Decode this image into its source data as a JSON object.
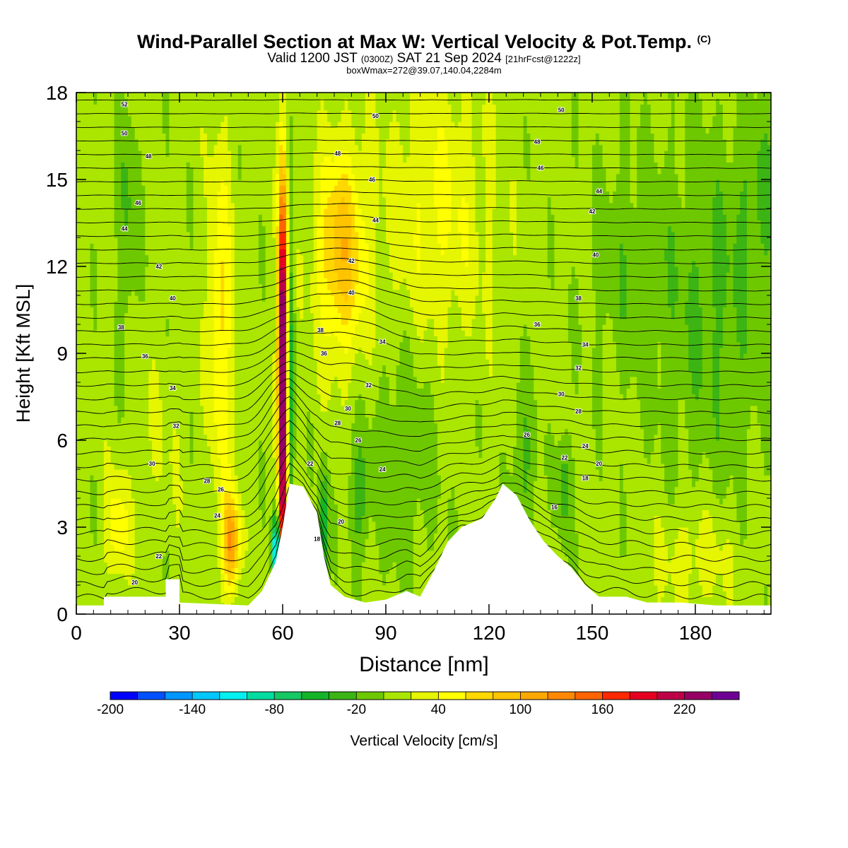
{
  "header": {
    "title": "Wind-Parallel Section at Max W: Vertical Velocity & Pot.Temp.",
    "copyright": "(C)",
    "valid_main": "Valid 1200 JST",
    "valid_utc": "(0300Z)",
    "valid_date": "SAT 21 Sep 2024",
    "forecast": "[21hrFcst@1222z]",
    "box_info": "boxWmax=272@39.07,140.04,2284m"
  },
  "colors": {
    "scale": [
      "#0000ff",
      "#0050ff",
      "#0096ff",
      "#00c8ff",
      "#00f0f0",
      "#00dca0",
      "#14c864",
      "#14b428",
      "#3cb414",
      "#6ec800",
      "#aae600",
      "#e6f500",
      "#ffff00",
      "#ffd800",
      "#ffc400",
      "#ffa800",
      "#ff8800",
      "#ff6400",
      "#ff2800",
      "#e60020",
      "#be0046",
      "#960064",
      "#6e0096"
    ]
  },
  "chart_data": {
    "type": "heatmap",
    "xlabel": "Distance [nm]",
    "ylabel": "Height [Kft MSL]",
    "xlim": [
      0,
      202
    ],
    "ylim": [
      0,
      18
    ],
    "xticks": [
      0,
      30,
      60,
      90,
      120,
      150,
      180
    ],
    "yticks": [
      0,
      3,
      6,
      9,
      12,
      15,
      18
    ],
    "colorbar": {
      "label": "Vertical Velocity [cm/s]",
      "levels": [
        -200,
        -180,
        -160,
        -140,
        -120,
        -100,
        -80,
        -60,
        -40,
        -20,
        0,
        20,
        40,
        60,
        80,
        100,
        120,
        140,
        160,
        180,
        200,
        220,
        240,
        260
      ],
      "tick_labels": [
        -200,
        -140,
        -80,
        -20,
        40,
        100,
        160,
        220
      ]
    },
    "terrain": [
      [
        0,
        0.3
      ],
      [
        8,
        0.3
      ],
      [
        8,
        0.6
      ],
      [
        26,
        0.6
      ],
      [
        26,
        1.2
      ],
      [
        30,
        1.2
      ],
      [
        30,
        0.4
      ],
      [
        50,
        0.3
      ],
      [
        54,
        0.8
      ],
      [
        58,
        1.8
      ],
      [
        60,
        3.0
      ],
      [
        62,
        4.5
      ],
      [
        66,
        4.4
      ],
      [
        70,
        3.5
      ],
      [
        72,
        2.0
      ],
      [
        74,
        1.0
      ],
      [
        78,
        0.6
      ],
      [
        84,
        0.4
      ],
      [
        90,
        0.5
      ],
      [
        96,
        0.8
      ],
      [
        100,
        0.6
      ],
      [
        104,
        1.5
      ],
      [
        108,
        2.5
      ],
      [
        112,
        3.0
      ],
      [
        118,
        3.3
      ],
      [
        122,
        4.0
      ],
      [
        124,
        4.5
      ],
      [
        128,
        4.1
      ],
      [
        132,
        3.2
      ],
      [
        136,
        2.5
      ],
      [
        140,
        2.0
      ],
      [
        144,
        1.6
      ],
      [
        148,
        1.0
      ],
      [
        152,
        0.6
      ],
      [
        160,
        0.6
      ],
      [
        166,
        0.4
      ],
      [
        176,
        0.4
      ],
      [
        186,
        0.3
      ],
      [
        202,
        0.3
      ]
    ],
    "w_features": [
      {
        "x": 60,
        "y": 9.5,
        "sx": 1.3,
        "sy": 5.5,
        "w": 272
      },
      {
        "x": 60,
        "y": 3.5,
        "sx": 1.0,
        "sy": 3.0,
        "w": 150
      },
      {
        "x": 58,
        "y": 2.2,
        "sx": 1.0,
        "sy": 1.2,
        "w": -160
      },
      {
        "x": 62.5,
        "y": 8.0,
        "sx": 0.9,
        "sy": 5.5,
        "w": -60
      },
      {
        "x": 77,
        "y": 12.5,
        "sx": 7,
        "sy": 3.5,
        "w": 85
      },
      {
        "x": 42,
        "y": 10.0,
        "sx": 3.5,
        "sy": 6.0,
        "w": 55
      },
      {
        "x": 45,
        "y": 2.5,
        "sx": 2.5,
        "sy": 1.6,
        "w": 110
      },
      {
        "x": 12,
        "y": 3.0,
        "sx": 3.5,
        "sy": 1.8,
        "w": 45
      },
      {
        "x": 105,
        "y": 14,
        "sx": 15,
        "sy": 4.5,
        "w": 35
      },
      {
        "x": 72,
        "y": 3.0,
        "sx": 1.3,
        "sy": 2.0,
        "w": -70
      },
      {
        "x": 82,
        "y": 4.0,
        "sx": 3.0,
        "sy": 2.0,
        "w": -35
      },
      {
        "x": 95,
        "y": 5.5,
        "sx": 10,
        "sy": 4.0,
        "w": -25
      },
      {
        "x": 130,
        "y": 5.0,
        "sx": 4.0,
        "sy": 3.0,
        "w": -30
      },
      {
        "x": 142,
        "y": 4.5,
        "sx": 2.0,
        "sy": 2.0,
        "w": -40
      },
      {
        "x": 15,
        "y": 14.0,
        "sx": 3.0,
        "sy": 4.5,
        "w": -30
      },
      {
        "x": 185,
        "y": 10.5,
        "sx": 16,
        "sy": 6.0,
        "w": -30
      },
      {
        "x": 160,
        "y": 12.0,
        "sx": 12,
        "sy": 4.0,
        "w": -20
      },
      {
        "x": 180,
        "y": 2.0,
        "sx": 12,
        "sy": 1.8,
        "w": 25
      },
      {
        "x": 25,
        "y": 6.0,
        "sx": 6,
        "sy": 3.0,
        "w": 12
      },
      {
        "x": 200,
        "y": 14.5,
        "sx": 8,
        "sy": 3.0,
        "w": -25
      }
    ],
    "theta_min_label": 16,
    "contour_labels": [
      {
        "x": 14,
        "y": 17.6,
        "label": "52"
      },
      {
        "x": 14,
        "y": 16.6,
        "label": "50"
      },
      {
        "x": 21,
        "y": 15.8,
        "label": "48"
      },
      {
        "x": 18,
        "y": 14.2,
        "label": "46"
      },
      {
        "x": 14,
        "y": 13.3,
        "label": "44"
      },
      {
        "x": 24,
        "y": 12.0,
        "label": "42"
      },
      {
        "x": 28,
        "y": 10.9,
        "label": "40"
      },
      {
        "x": 13,
        "y": 9.9,
        "label": "38"
      },
      {
        "x": 20,
        "y": 8.9,
        "label": "36"
      },
      {
        "x": 28,
        "y": 7.8,
        "label": "34"
      },
      {
        "x": 29,
        "y": 6.5,
        "label": "32"
      },
      {
        "x": 22,
        "y": 5.2,
        "label": "30"
      },
      {
        "x": 38,
        "y": 4.6,
        "label": "28"
      },
      {
        "x": 42,
        "y": 4.3,
        "label": "26"
      },
      {
        "x": 41,
        "y": 3.4,
        "label": "24"
      },
      {
        "x": 24,
        "y": 2.0,
        "label": "22"
      },
      {
        "x": 17,
        "y": 1.1,
        "label": "20"
      },
      {
        "x": 87,
        "y": 17.2,
        "label": "50"
      },
      {
        "x": 76,
        "y": 15.9,
        "label": "48"
      },
      {
        "x": 86,
        "y": 15.0,
        "label": "46"
      },
      {
        "x": 87,
        "y": 13.6,
        "label": "44"
      },
      {
        "x": 80,
        "y": 12.2,
        "label": "42"
      },
      {
        "x": 80,
        "y": 11.1,
        "label": "40"
      },
      {
        "x": 71,
        "y": 9.8,
        "label": "38"
      },
      {
        "x": 72,
        "y": 9.0,
        "label": "36"
      },
      {
        "x": 89,
        "y": 9.4,
        "label": "34"
      },
      {
        "x": 85,
        "y": 7.9,
        "label": "32"
      },
      {
        "x": 79,
        "y": 7.1,
        "label": "30"
      },
      {
        "x": 76,
        "y": 6.6,
        "label": "28"
      },
      {
        "x": 82,
        "y": 6.0,
        "label": "26"
      },
      {
        "x": 89,
        "y": 5.0,
        "label": "24"
      },
      {
        "x": 68,
        "y": 5.2,
        "label": "22"
      },
      {
        "x": 77,
        "y": 3.2,
        "label": "20"
      },
      {
        "x": 70,
        "y": 2.6,
        "label": "18"
      },
      {
        "x": 141,
        "y": 17.4,
        "label": "50"
      },
      {
        "x": 134,
        "y": 16.3,
        "label": "48"
      },
      {
        "x": 135,
        "y": 15.4,
        "label": "46"
      },
      {
        "x": 152,
        "y": 14.6,
        "label": "44"
      },
      {
        "x": 150,
        "y": 13.9,
        "label": "42"
      },
      {
        "x": 151,
        "y": 12.4,
        "label": "40"
      },
      {
        "x": 146,
        "y": 10.9,
        "label": "38"
      },
      {
        "x": 134,
        "y": 10.0,
        "label": "36"
      },
      {
        "x": 148,
        "y": 9.3,
        "label": "34"
      },
      {
        "x": 146,
        "y": 8.5,
        "label": "32"
      },
      {
        "x": 141,
        "y": 7.6,
        "label": "30"
      },
      {
        "x": 146,
        "y": 7.0,
        "label": "28"
      },
      {
        "x": 131,
        "y": 6.2,
        "label": "26"
      },
      {
        "x": 148,
        "y": 5.8,
        "label": "24"
      },
      {
        "x": 142,
        "y": 5.4,
        "label": "22"
      },
      {
        "x": 152,
        "y": 5.2,
        "label": "20"
      },
      {
        "x": 148,
        "y": 4.7,
        "label": "18"
      },
      {
        "x": 139,
        "y": 3.7,
        "label": "16"
      }
    ]
  }
}
